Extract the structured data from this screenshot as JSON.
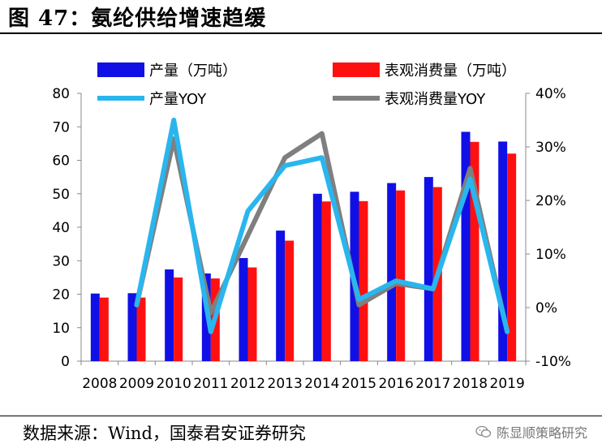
{
  "figure": {
    "title": "图 47：氨纶供给增速趋缓",
    "source": "数据来源：Wind，国泰君安证券研究",
    "watermark": "陈显顺策略研究",
    "watermark_icon": "wechat-icon"
  },
  "colors": {
    "production_bar": "#1010e6",
    "consumption_bar": "#ff1010",
    "production_yoy_line": "#29b6ee",
    "consumption_yoy_line": "#7f7f7f"
  },
  "chart_data": {
    "type": "bar",
    "categories": [
      "2008",
      "2009",
      "2010",
      "2011",
      "2012",
      "2013",
      "2014",
      "2015",
      "2016",
      "2017",
      "2018",
      "2019"
    ],
    "series": [
      {
        "name": "产量（万吨）",
        "kind": "bar",
        "axis": "left",
        "values": [
          20.2,
          20.3,
          27.4,
          26.2,
          30.8,
          39.0,
          50.0,
          50.6,
          53.2,
          55.0,
          68.5,
          65.6
        ]
      },
      {
        "name": "表观消费量（万吨）",
        "kind": "bar",
        "axis": "left",
        "values": [
          19.0,
          19.0,
          25.0,
          24.7,
          28.0,
          36.0,
          47.7,
          47.8,
          51.0,
          52.0,
          65.5,
          62.0
        ]
      },
      {
        "name": "产量YOY",
        "kind": "line",
        "axis": "right",
        "values": [
          null,
          0.5,
          35.0,
          -4.5,
          18.0,
          26.5,
          28.0,
          1.5,
          5.0,
          3.5,
          24.0,
          -4.5
        ]
      },
      {
        "name": "表观消费量YOY",
        "kind": "line",
        "axis": "right",
        "values": [
          null,
          0.5,
          31.5,
          -1.0,
          13.5,
          28.0,
          32.5,
          0.5,
          4.5,
          3.5,
          26.0,
          -4.5
        ]
      }
    ],
    "y_left": {
      "lim": [
        0,
        80
      ],
      "ticks": [
        0,
        10,
        20,
        30,
        40,
        50,
        60,
        70,
        80
      ],
      "tick_labels": [
        "0",
        "10",
        "20",
        "30",
        "40",
        "50",
        "60",
        "70",
        "80"
      ]
    },
    "y_right": {
      "lim": [
        -10,
        40
      ],
      "ticks": [
        -10,
        0,
        10,
        20,
        30,
        40
      ],
      "tick_labels": [
        "-10%",
        "0%",
        "10%",
        "20%",
        "30%",
        "40%"
      ]
    },
    "legend_position": "top",
    "grid": false
  }
}
